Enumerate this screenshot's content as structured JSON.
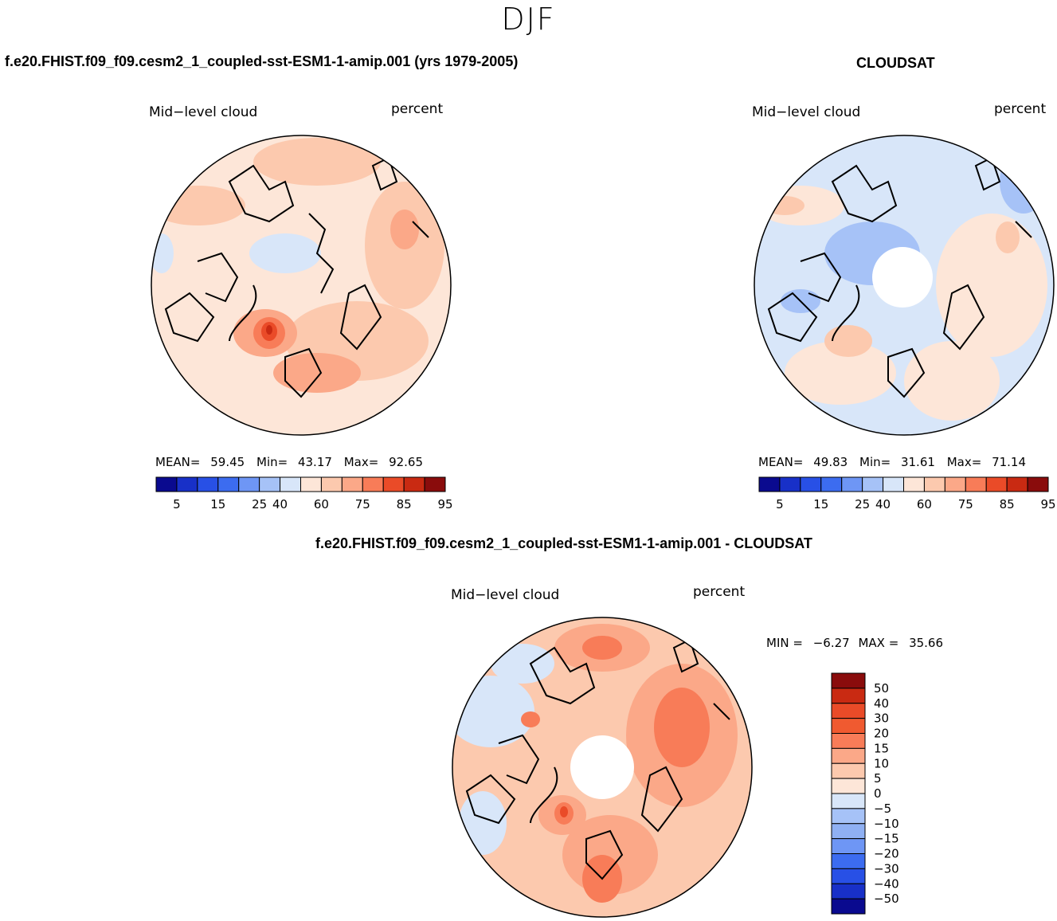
{
  "figure": {
    "season": "DJF",
    "left_panel_title": "f.e20.FHIST.f09_f09.cesm2_1_coupled-sst-ESM1-1-amip.001 (yrs 1979-2005)",
    "right_panel_title": "CLOUDSAT",
    "diff_panel_title": "f.e20.FHIST.f09_f09.cesm2_1_coupled-sst-ESM1-1-amip.001 - CLOUDSAT"
  },
  "panels": {
    "model": {
      "variable": "Mid−level cloud",
      "units": "percent",
      "mean_label": "MEAN=",
      "mean": "59.45",
      "min_label": "Min=",
      "min": "43.17",
      "max_label": "Max=",
      "max": "92.65"
    },
    "obs": {
      "variable": "Mid−level cloud",
      "units": "percent",
      "mean_label": "MEAN=",
      "mean": "49.83",
      "min_label": "Min=",
      "min": "31.61",
      "max_label": "Max=",
      "max": "71.14"
    },
    "diff": {
      "variable": "Mid−level cloud",
      "units": "percent",
      "min_label": "MIN =",
      "min": "−6.27",
      "max_label": "MAX =",
      "max": "35.66"
    }
  },
  "colorbars": {
    "abs": {
      "colors": [
        "#0a0a8f",
        "#1830c8",
        "#2850e6",
        "#3c6cf0",
        "#6e96f5",
        "#a6c2f7",
        "#d8e6f9",
        "#fde6d8",
        "#fcc9ae",
        "#fba888",
        "#f87c58",
        "#ea4b28",
        "#c92a12",
        "#8a0c0c"
      ],
      "tick_labels": [
        "5",
        "15",
        "25",
        "40",
        "60",
        "75",
        "85",
        "95"
      ]
    },
    "diff": {
      "colors": [
        "#8a0c0c",
        "#c92a12",
        "#ea4b28",
        "#f05a30",
        "#f87c58",
        "#fba888",
        "#fcc9ae",
        "#fde6d8",
        "#d8e6f9",
        "#a6c2f7",
        "#8fb0f3",
        "#6e96f5",
        "#3c6cf0",
        "#2850e6",
        "#1830c8",
        "#0a0a8f"
      ],
      "tick_labels": [
        "50",
        "40",
        "30",
        "20",
        "15",
        "10",
        "5",
        "0",
        "−5",
        "−10",
        "−15",
        "−20",
        "−30",
        "−40",
        "−50"
      ]
    }
  },
  "map_colors": {
    "model_base": "#fde6d8",
    "obs_base": "#d8e6f9",
    "diff_base": "#fcc9ae"
  }
}
